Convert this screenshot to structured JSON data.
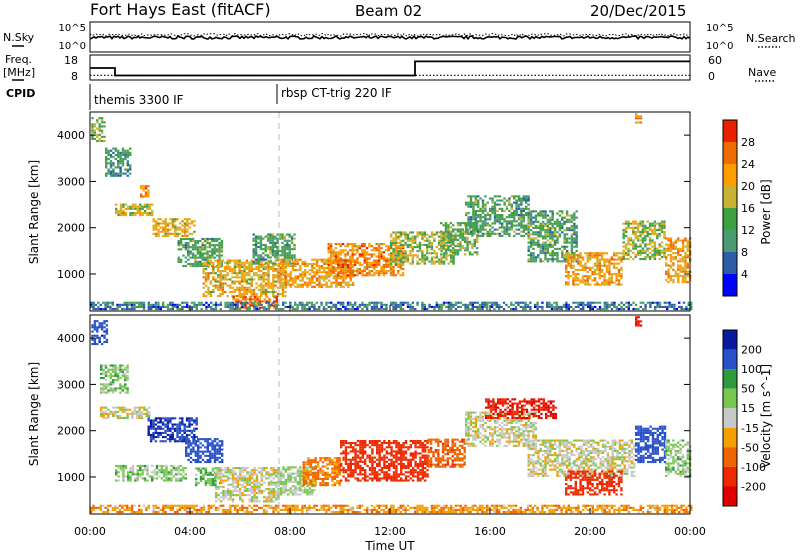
{
  "header": {
    "title": "Fort Hays East (fitACF)",
    "beam": "Beam 02",
    "date": "20/Dec/2015"
  },
  "status_panel": {
    "left_labels": {
      "nsky": "N.Sky",
      "freq_line1": "Freq.",
      "freq_line2": "[MHz]",
      "cpid": "CPID"
    },
    "right_labels": {
      "nsearch": "N.Search",
      "nave": "Nave"
    },
    "left_ticks_noise": [
      "10^5",
      "10^0"
    ],
    "right_ticks_noise": [
      "10^5",
      "10^0"
    ],
    "left_ticks_freq": [
      "18",
      "8"
    ],
    "right_ticks_freq": [
      "60",
      "0"
    ],
    "freq_steps": [
      {
        "from": 0.0,
        "to": 1.0,
        "freq": 13.0
      },
      {
        "from": 1.0,
        "to": 13.0,
        "freq": 9.6
      },
      {
        "from": 13.0,
        "to": 24.0,
        "freq": 16.0
      }
    ],
    "nave_level": 10,
    "cpid_segments": [
      {
        "start_hour": 0.0,
        "label": "themis 3300 IF"
      },
      {
        "start_hour": 7.4,
        "label": "rbsp CT-trig 220 IF"
      }
    ]
  },
  "chart_data": [
    {
      "type": "heatmap",
      "name": "power",
      "ylabel": "Slant Range [km]",
      "xlabel": "",
      "ylim": [
        200,
        4500
      ],
      "xlim": [
        0,
        24
      ],
      "yticks": [
        "1000",
        "2000",
        "3000",
        "4000"
      ],
      "colorbar_label": "Power [dB]",
      "colorbar_ticks": [
        "4",
        "8",
        "12",
        "16",
        "20",
        "24",
        "28"
      ],
      "colorbar_colors": [
        "#0000ff",
        "#2d5fa8",
        "#4a9a72",
        "#3fa040",
        "#c8b432",
        "#ff9d00",
        "#f06c00",
        "#e82000"
      ],
      "bands": [
        {
          "x": [
            0.05,
            0.6
          ],
          "y0": 3850,
          "y1": 4350,
          "level": 14
        },
        {
          "x": [
            0.6,
            1.6
          ],
          "y0": 3100,
          "y1": 3700,
          "level": 10
        },
        {
          "x": [
            1.0,
            2.5
          ],
          "y0": 2250,
          "y1": 2480,
          "level": 18
        },
        {
          "x": [
            2.0,
            2.3
          ],
          "y0": 2650,
          "y1": 2900,
          "level": 24
        },
        {
          "x": [
            2.5,
            4.2
          ],
          "y0": 1800,
          "y1": 2200,
          "level": 20
        },
        {
          "x": [
            3.5,
            5.3
          ],
          "y0": 1150,
          "y1": 1750,
          "level": 12
        },
        {
          "x": [
            4.5,
            7.8
          ],
          "y0": 500,
          "y1": 1300,
          "level": 20
        },
        {
          "x": [
            5.6,
            7.5
          ],
          "y0": 250,
          "y1": 500,
          "level": 26
        },
        {
          "x": [
            6.5,
            8.2
          ],
          "y0": 1200,
          "y1": 1850,
          "level": 12
        },
        {
          "x": [
            7.5,
            10.5
          ],
          "y0": 700,
          "y1": 1300,
          "level": 22
        },
        {
          "x": [
            9.5,
            12.5
          ],
          "y0": 950,
          "y1": 1650,
          "level": 24
        },
        {
          "x": [
            12.0,
            14.5
          ],
          "y0": 1200,
          "y1": 1900,
          "level": 16
        },
        {
          "x": [
            14.0,
            15.5
          ],
          "y0": 1400,
          "y1": 2100,
          "level": 14
        },
        {
          "x": [
            15.0,
            17.5
          ],
          "y0": 1800,
          "y1": 2700,
          "level": 12
        },
        {
          "x": [
            17.5,
            19.5
          ],
          "y0": 1250,
          "y1": 2350,
          "level": 12
        },
        {
          "x": [
            19.0,
            21.3
          ],
          "y0": 750,
          "y1": 1450,
          "level": 22
        },
        {
          "x": [
            21.3,
            23.0
          ],
          "y0": 1300,
          "y1": 2150,
          "level": 16
        },
        {
          "x": [
            23.0,
            24.0
          ],
          "y0": 800,
          "y1": 1750,
          "level": 22
        },
        {
          "x": [
            21.8,
            22.0
          ],
          "y0": 4250,
          "y1": 4450,
          "level": 22
        },
        {
          "x": [
            0.0,
            24.0
          ],
          "y0": 220,
          "y1": 380,
          "level": 8
        }
      ]
    },
    {
      "type": "heatmap",
      "name": "velocity",
      "ylabel": "Slant Range [km]",
      "xlabel": "Time UT",
      "ylim": [
        200,
        4500
      ],
      "xlim": [
        0,
        24
      ],
      "yticks": [
        "1000",
        "2000",
        "3000",
        "4000"
      ],
      "xticks": [
        "00:00",
        "04:00",
        "08:00",
        "12:00",
        "16:00",
        "20:00",
        "00:00"
      ],
      "colorbar_label": "Velocity [m s^-1]",
      "colorbar_ticks": [
        "200",
        "100",
        "50",
        "15",
        "-15",
        "-50",
        "-100",
        "-200"
      ],
      "colorbar_colors": [
        "#0a1aa0",
        "#2850c8",
        "#2d9b3c",
        "#78c850",
        "#c8c8c8",
        "#f5a000",
        "#f06400",
        "#f02800",
        "#e00000"
      ],
      "bands": [
        {
          "x": [
            0.05,
            0.7
          ],
          "y0": 3850,
          "y1": 4350,
          "value": 180
        },
        {
          "x": [
            0.4,
            1.5
          ],
          "y0": 2800,
          "y1": 3400,
          "value": 30
        },
        {
          "x": [
            0.4,
            2.4
          ],
          "y0": 2250,
          "y1": 2500,
          "value": 0
        },
        {
          "x": [
            2.3,
            4.3
          ],
          "y0": 1750,
          "y1": 2250,
          "value": 200
        },
        {
          "x": [
            3.8,
            5.3
          ],
          "y0": 1300,
          "y1": 1800,
          "value": 150
        },
        {
          "x": [
            4.2,
            5.2
          ],
          "y0": 800,
          "y1": 1200,
          "value": 40
        },
        {
          "x": [
            5.0,
            7.5
          ],
          "y0": 450,
          "y1": 1200,
          "value": 0
        },
        {
          "x": [
            1.0,
            3.8
          ],
          "y0": 900,
          "y1": 1250,
          "value": 30
        },
        {
          "x": [
            7.5,
            9.0
          ],
          "y0": 600,
          "y1": 1200,
          "value": 20
        },
        {
          "x": [
            8.5,
            10.0
          ],
          "y0": 800,
          "y1": 1400,
          "value": -60
        },
        {
          "x": [
            10.0,
            13.5
          ],
          "y0": 900,
          "y1": 1800,
          "value": -160
        },
        {
          "x": [
            13.5,
            15.0
          ],
          "y0": 1200,
          "y1": 1800,
          "value": -80
        },
        {
          "x": [
            15.0,
            17.8
          ],
          "y0": 1650,
          "y1": 2400,
          "value": 0
        },
        {
          "x": [
            15.8,
            18.6
          ],
          "y0": 2250,
          "y1": 2700,
          "value": -200
        },
        {
          "x": [
            17.5,
            21.8
          ],
          "y0": 1000,
          "y1": 1800,
          "value": 0
        },
        {
          "x": [
            19.0,
            21.3
          ],
          "y0": 600,
          "y1": 1100,
          "value": -150
        },
        {
          "x": [
            21.8,
            23.0
          ],
          "y0": 1300,
          "y1": 2100,
          "value": 150
        },
        {
          "x": [
            23.0,
            24.0
          ],
          "y0": 1000,
          "y1": 1800,
          "value": 30
        },
        {
          "x": [
            21.8,
            22.0
          ],
          "y0": 4250,
          "y1": 4450,
          "value": -200
        },
        {
          "x": [
            0.0,
            24.0
          ],
          "y0": 220,
          "y1": 400,
          "value": -40
        }
      ]
    }
  ],
  "colors": {
    "axis": "#000000",
    "divider": "#bbbbbb"
  }
}
